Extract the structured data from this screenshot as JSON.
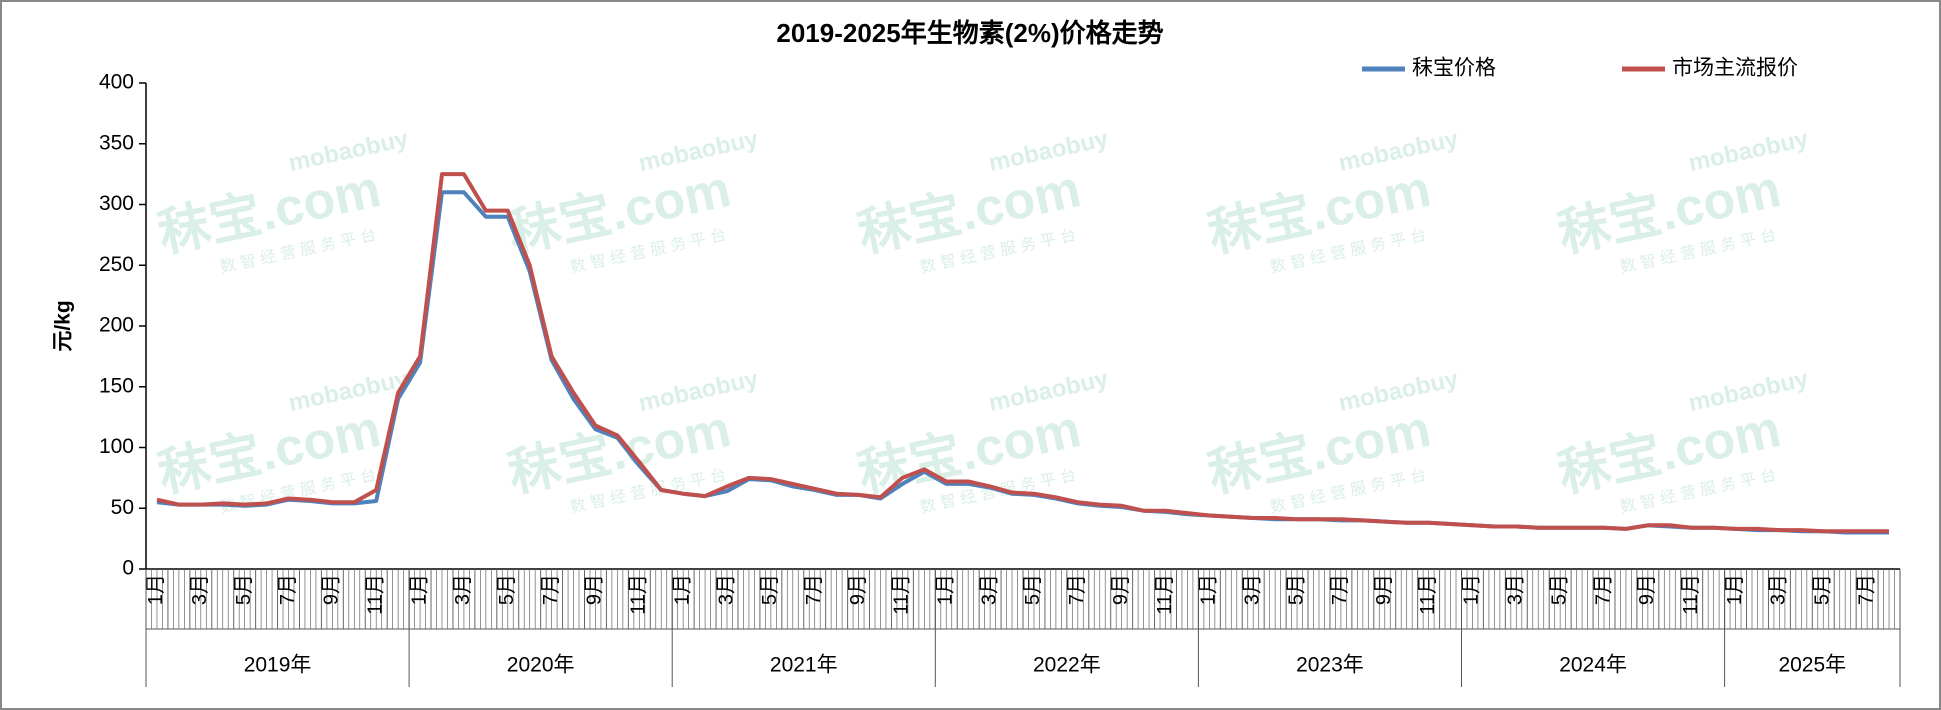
{
  "chart_data": {
    "type": "line",
    "title": "2019-2025年生物素(2%)价格走势",
    "y_label": "元/kg",
    "watermark": {
      "brand": "秣宝.com",
      "sub": "mobaobuy",
      "tagline": "数 智 经 营 服 务 平 台"
    },
    "years": [
      "2019年",
      "2020年",
      "2021年",
      "2022年",
      "2023年",
      "2024年",
      "2025年"
    ],
    "categories": [
      "1月",
      null,
      "3月",
      null,
      "5月",
      null,
      "7月",
      null,
      "9月",
      null,
      "11月",
      null,
      "1月",
      null,
      "3月",
      null,
      "5月",
      null,
      "7月",
      null,
      "9月",
      null,
      "11月",
      null,
      "1月",
      null,
      "3月",
      null,
      "5月",
      null,
      "7月",
      null,
      "9月",
      null,
      "11月",
      null,
      "1月",
      null,
      "3月",
      null,
      "5月",
      null,
      "7月",
      null,
      "9月",
      null,
      "11月",
      null,
      "1月",
      null,
      "3月",
      null,
      "5月",
      null,
      "7月",
      null,
      "9月",
      null,
      "11月",
      null,
      "1月",
      null,
      "3月",
      null,
      "5月",
      null,
      "7月",
      null,
      "9月",
      null,
      "11月",
      null,
      "1月",
      null,
      "3月",
      null,
      "5月",
      null,
      "7月",
      null
    ],
    "series": [
      {
        "name": "秣宝价格",
        "color": "#4f81bd",
        "values": [
          55,
          53,
          53,
          53,
          52,
          53,
          57,
          56,
          54,
          54,
          56,
          140,
          170,
          310,
          310,
          290,
          290,
          245,
          172,
          140,
          115,
          108,
          85,
          65,
          62,
          60,
          64,
          74,
          73,
          68,
          65,
          61,
          61,
          58,
          70,
          80,
          70,
          70,
          67,
          62,
          61,
          58,
          54,
          52,
          51,
          48,
          47,
          45,
          44,
          43,
          42,
          41,
          41,
          41,
          40,
          40,
          39,
          38,
          38,
          37,
          36,
          35,
          35,
          34,
          34,
          34,
          34,
          33,
          36,
          35,
          34,
          34,
          33,
          32,
          32,
          31,
          31,
          30,
          30,
          30
        ]
      },
      {
        "name": "市场主流报价",
        "color": "#c0504d",
        "values": [
          57,
          53,
          53,
          54,
          53,
          54,
          58,
          57,
          55,
          55,
          65,
          145,
          175,
          325,
          325,
          295,
          295,
          250,
          175,
          145,
          118,
          110,
          88,
          65,
          62,
          60,
          68,
          75,
          74,
          70,
          66,
          62,
          61,
          59,
          75,
          82,
          72,
          72,
          68,
          63,
          62,
          59,
          55,
          53,
          52,
          48,
          48,
          46,
          44,
          43,
          42,
          42,
          41,
          41,
          41,
          40,
          39,
          38,
          38,
          37,
          36,
          35,
          35,
          34,
          34,
          34,
          34,
          33,
          36,
          36,
          34,
          34,
          33,
          33,
          32,
          32,
          31,
          31,
          31,
          31
        ]
      }
    ],
    "ylim": [
      0,
      400
    ],
    "yticks": [
      0,
      50,
      100,
      150,
      200,
      250,
      300,
      350,
      400
    ],
    "legend": "top-right",
    "grid": false
  }
}
